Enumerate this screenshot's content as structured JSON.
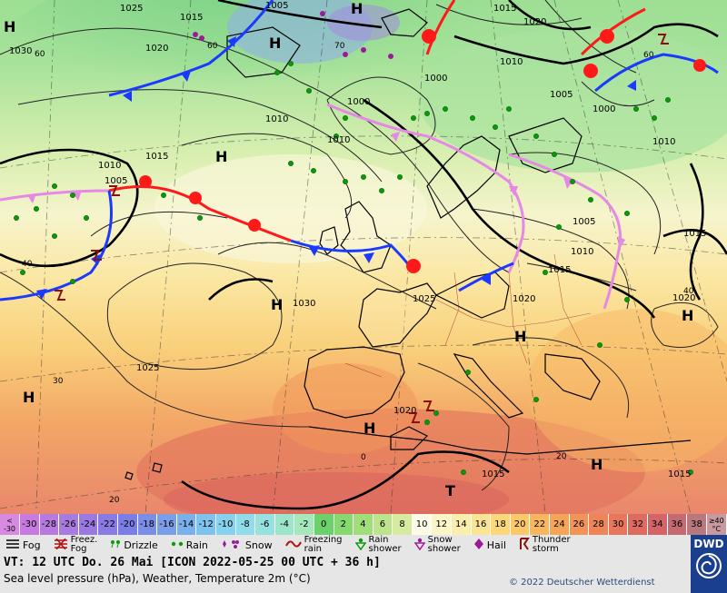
{
  "map": {
    "pressure_labels": [
      {
        "text": "1025"
      },
      {
        "text": "1015"
      },
      {
        "text": "1005"
      },
      {
        "text": "1020"
      },
      {
        "text": "1030"
      },
      {
        "text": "1015"
      },
      {
        "text": "1010"
      },
      {
        "text": "1000"
      },
      {
        "text": "1000"
      },
      {
        "text": "1010"
      },
      {
        "text": "1015"
      },
      {
        "text": "1020"
      },
      {
        "text": "1005"
      },
      {
        "text": "1010"
      },
      {
        "text": "1010"
      },
      {
        "text": "1005"
      },
      {
        "text": "1010"
      },
      {
        "text": "1015"
      },
      {
        "text": "1015"
      },
      {
        "text": "1020"
      },
      {
        "text": "1025"
      },
      {
        "text": "1030"
      },
      {
        "text": "1025"
      },
      {
        "text": "1020"
      },
      {
        "text": "1020"
      },
      {
        "text": "1015"
      },
      {
        "text": "1015"
      },
      {
        "text": "1005"
      },
      {
        "text": "1010"
      },
      {
        "text": "1000"
      }
    ],
    "center_labels": [
      {
        "text": "H"
      },
      {
        "text": "H"
      },
      {
        "text": "H"
      },
      {
        "text": "H"
      },
      {
        "text": "H"
      },
      {
        "text": "H"
      },
      {
        "text": "H"
      },
      {
        "text": "H"
      },
      {
        "text": "H"
      },
      {
        "text": "T"
      },
      {
        "text": "H"
      }
    ],
    "grid_labels": [
      {
        "text": "60"
      },
      {
        "text": "60"
      },
      {
        "text": "70"
      },
      {
        "text": "60"
      },
      {
        "text": "40"
      },
      {
        "text": "30"
      },
      {
        "text": "20"
      },
      {
        "text": "0"
      },
      {
        "text": "20"
      },
      {
        "text": "40"
      }
    ]
  },
  "temperature_scale": {
    "unit_top": "<",
    "unit_bottom": "-30",
    "cap_end_top": "≥40",
    "cap_end_bottom": "°C",
    "cells": [
      {
        "label": "-30",
        "color": "#c87adf"
      },
      {
        "label": "-28",
        "color": "#b77ade"
      },
      {
        "label": "-26",
        "color": "#a97ae0"
      },
      {
        "label": "-24",
        "color": "#9a7ae2"
      },
      {
        "label": "-22",
        "color": "#8a7ae4"
      },
      {
        "label": "-20",
        "color": "#7a7ee6"
      },
      {
        "label": "-18",
        "color": "#7a8ee8"
      },
      {
        "label": "-16",
        "color": "#7a9eea"
      },
      {
        "label": "-14",
        "color": "#7ab0ec"
      },
      {
        "label": "-12",
        "color": "#7ec2ee"
      },
      {
        "label": "-10",
        "color": "#86d2ee"
      },
      {
        "label": "-8",
        "color": "#90dcea"
      },
      {
        "label": "-6",
        "color": "#96e2de"
      },
      {
        "label": "-4",
        "color": "#9ce6cc"
      },
      {
        "label": "-2",
        "color": "#a4e8bc"
      },
      {
        "label": "0",
        "color": "#6bd26b"
      },
      {
        "label": "2",
        "color": "#86d870"
      },
      {
        "label": "4",
        "color": "#a0de78"
      },
      {
        "label": "6",
        "color": "#bce48a"
      },
      {
        "label": "8",
        "color": "#d6eaa0"
      },
      {
        "label": "10",
        "color": "#fbfbe6"
      },
      {
        "label": "12",
        "color": "#fbf5c8"
      },
      {
        "label": "14",
        "color": "#fbeeac"
      },
      {
        "label": "16",
        "color": "#fbe594"
      },
      {
        "label": "18",
        "color": "#fbd87c"
      },
      {
        "label": "20",
        "color": "#fbc86a"
      },
      {
        "label": "22",
        "color": "#f9b65e"
      },
      {
        "label": "24",
        "color": "#f6a458"
      },
      {
        "label": "26",
        "color": "#f29458"
      },
      {
        "label": "28",
        "color": "#ee8458"
      },
      {
        "label": "30",
        "color": "#e8765a"
      },
      {
        "label": "32",
        "color": "#df6a60"
      },
      {
        "label": "34",
        "color": "#d46468"
      },
      {
        "label": "36",
        "color": "#c66a72"
      },
      {
        "label": "38",
        "color": "#b8787e"
      }
    ]
  },
  "weather_legend": {
    "fog": "Fog",
    "freez_fog_1": "Freez.",
    "freez_fog_2": "Fog",
    "drizzle": "Drizzle",
    "rain": "Rain",
    "snow": "Snow",
    "freezing_rain_1": "Freezing",
    "freezing_rain_2": "rain",
    "rain_shower_1": "Rain",
    "rain_shower_2": "shower",
    "snow_shower_1": "Snow",
    "snow_shower_2": "shower",
    "hail": "Hail",
    "thunderstorm_1": "Thunder",
    "thunderstorm_2": "storm"
  },
  "info": {
    "valid_time": "VT: 12 UTC Do.  26 Mai [ICON 2022-05-25  00 UTC + 36 h]",
    "subtitle": "Sea level pressure (hPa), Weather, Temperature 2m (°C)",
    "copyright": "© 2022 Deutscher Wetterdienst",
    "logo_text": "DWD"
  },
  "colors": {
    "cold_front": "#1a3aff",
    "warm_front": "#ff1a1a",
    "occluded_front": "#e688e6",
    "land_border": "#000000"
  }
}
